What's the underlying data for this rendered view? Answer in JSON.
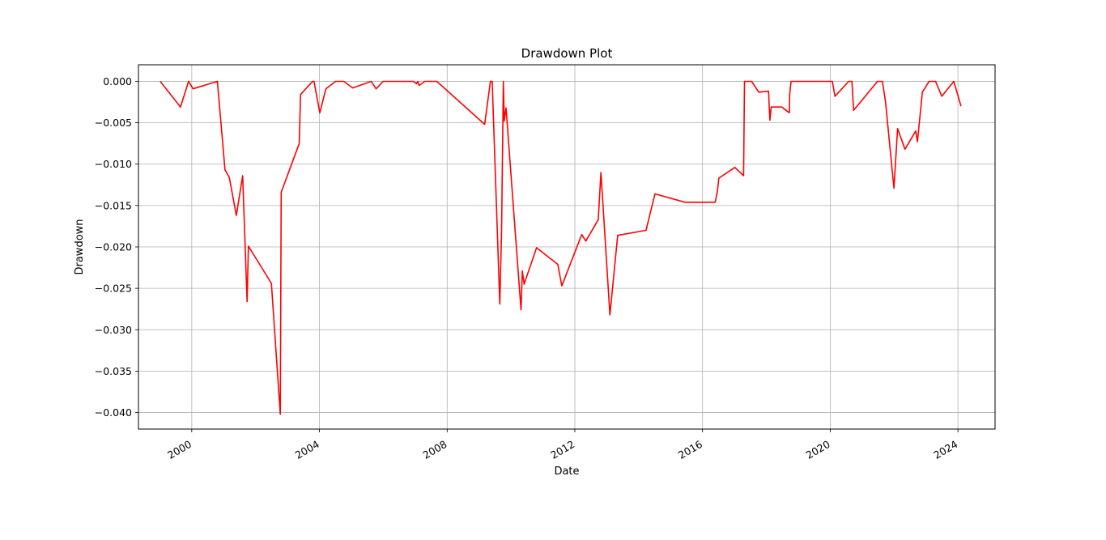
{
  "chart_data": {
    "type": "line",
    "title": "Drawdown Plot",
    "xlabel": "Date",
    "ylabel": "Drawdown",
    "xlim": [
      "1998-05-01",
      "2025-03-01"
    ],
    "ylim": [
      -0.042,
      0.002
    ],
    "x_ticks": [
      "2000-01-01",
      "2004-01-01",
      "2008-01-01",
      "2012-01-01",
      "2016-01-01",
      "2020-01-01",
      "2024-01-01"
    ],
    "x_tick_labels": [
      "2000",
      "2004",
      "2008",
      "2012",
      "2016",
      "2020",
      "2024"
    ],
    "y_ticks": [
      0.0,
      -0.005,
      -0.01,
      -0.015,
      -0.02,
      -0.025,
      -0.03,
      -0.035,
      -0.04
    ],
    "y_tick_labels": [
      "0.000",
      "−0.005",
      "−0.010",
      "−0.015",
      "−0.020",
      "−0.025",
      "−0.030",
      "−0.035",
      "−0.040"
    ],
    "grid": true,
    "colors": {
      "line": "#ff0000",
      "grid": "#b0b0b0",
      "axes": "#000000"
    },
    "series": [
      {
        "x": [
          "1999-01-05",
          "1999-08-25",
          "1999-11-25",
          "2000-01-15",
          "2000-10-20",
          "2001-01-15",
          "2001-03-05",
          "2001-05-25",
          "2001-08-05",
          "2001-09-25",
          "2001-10-10",
          "2002-06-30",
          "2002-10-10",
          "2002-10-20",
          "2003-05-15",
          "2003-05-30",
          "2003-10-15",
          "2003-10-30",
          "2004-01-05",
          "2004-03-15",
          "2004-07-05",
          "2004-10-05",
          "2005-01-15",
          "2005-08-15",
          "2005-10-10",
          "2005-12-30",
          "2006-03-15",
          "2006-12-10",
          "2007-01-15",
          "2007-01-30",
          "2007-02-15",
          "2007-04-20",
          "2007-09-05",
          "2009-03-05",
          "2009-05-10",
          "2009-05-30",
          "2009-08-25",
          "2009-09-15",
          "2009-10-05",
          "2009-10-15",
          "2009-11-05",
          "2010-04-25",
          "2010-05-10",
          "2010-05-30",
          "2010-10-20",
          "2011-06-20",
          "2011-08-05",
          "2012-03-20",
          "2012-05-05",
          "2012-09-25",
          "2012-10-25",
          "2013-02-05",
          "2013-05-05",
          "2014-03-25",
          "2014-07-05",
          "2015-06-15",
          "2016-05-25",
          "2016-06-20",
          "2016-07-05",
          "2017-01-05",
          "2017-04-15",
          "2017-04-25",
          "2017-07-15",
          "2017-10-05",
          "2018-01-25",
          "2018-02-10",
          "2018-02-25",
          "2018-06-25",
          "2018-09-20",
          "2018-09-25",
          "2018-10-10",
          "2020-01-25",
          "2020-02-25",
          "2020-07-30",
          "2020-09-05",
          "2020-09-25",
          "2021-06-25",
          "2021-08-20",
          "2021-09-25",
          "2021-12-30",
          "2022-02-10",
          "2022-05-05",
          "2022-09-05",
          "2022-09-25",
          "2022-11-20",
          "2023-02-05",
          "2023-04-20",
          "2023-06-30",
          "2023-11-15",
          "2024-02-05"
        ],
        "y": [
          0.0,
          -0.0031,
          0.0,
          -0.0009,
          0.0,
          -0.0107,
          -0.0116,
          -0.0162,
          -0.0114,
          -0.0266,
          -0.0199,
          -0.0244,
          -0.0402,
          -0.0134,
          -0.0075,
          -0.0016,
          0.0,
          0.0,
          -0.0038,
          -0.0009,
          0.0,
          0.0,
          -0.0008,
          0.0,
          -0.0009,
          0.0,
          0.0,
          0.0,
          -0.0003,
          0.0,
          -0.0005,
          0.0,
          0.0,
          -0.0052,
          0.0,
          0.0,
          -0.0269,
          -0.018,
          0.0,
          -0.0048,
          -0.0032,
          -0.0276,
          -0.0229,
          -0.0245,
          -0.0201,
          -0.0221,
          -0.0247,
          -0.0185,
          -0.0193,
          -0.0167,
          -0.011,
          -0.0282,
          -0.0186,
          -0.018,
          -0.0136,
          -0.0146,
          -0.0146,
          -0.0132,
          -0.0117,
          -0.0104,
          -0.0114,
          0.0,
          0.0,
          -0.0013,
          -0.0012,
          -0.0047,
          -0.0031,
          -0.0031,
          -0.0038,
          -0.0015,
          0.0,
          0.0,
          -0.0018,
          0.0,
          0.0,
          -0.0035,
          0.0,
          0.0,
          -0.0025,
          -0.0129,
          -0.0057,
          -0.0082,
          -0.006,
          -0.0073,
          -0.0013,
          0.0,
          0.0,
          -0.0018,
          0.0,
          -0.003
        ]
      }
    ]
  }
}
